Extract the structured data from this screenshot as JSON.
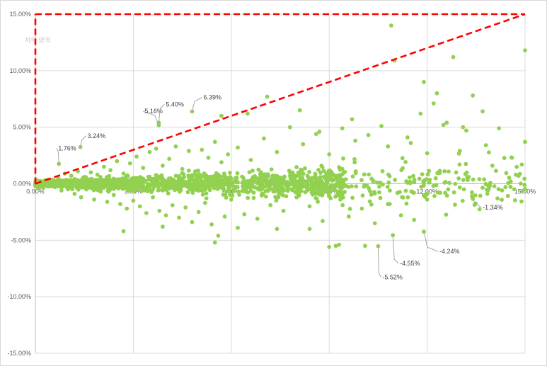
{
  "chart_data": {
    "type": "scatter",
    "title": "",
    "xlabel": "",
    "ylabel": "",
    "xlim": [
      0,
      15
    ],
    "ylim": [
      -15,
      15
    ],
    "x_ticks": [
      {
        "value": 0,
        "label": "0.00%"
      },
      {
        "value": 3,
        "label": "3.00%"
      },
      {
        "value": 6,
        "label": "6.00%"
      },
      {
        "value": 9,
        "label": "9.00%"
      },
      {
        "value": 12,
        "label": "12.00%"
      },
      {
        "value": 15,
        "label": "15.00%"
      }
    ],
    "y_ticks": [
      {
        "value": 15,
        "label": "15.00%"
      },
      {
        "value": 10,
        "label": "10.00%"
      },
      {
        "value": 5,
        "label": "5.00%"
      },
      {
        "value": 0,
        "label": "0.00%"
      },
      {
        "value": -5,
        "label": "-5.00%"
      },
      {
        "value": -10,
        "label": "-10.00%"
      },
      {
        "value": -15,
        "label": "-15.00%"
      }
    ],
    "vertical_gridlines": true,
    "horizontal_gridlines": true,
    "legend": "none",
    "marker_color": "#92d050",
    "reference_color": "#ff0000",
    "watermark_text": "차트 영역",
    "reference_lines": [
      {
        "style": "dashed",
        "points": [
          [
            0,
            0
          ],
          [
            15,
            15
          ]
        ]
      },
      {
        "style": "dashed",
        "points": [
          [
            0,
            0
          ],
          [
            0,
            15
          ]
        ]
      },
      {
        "style": "dashed",
        "points": [
          [
            0,
            15
          ],
          [
            15,
            15
          ]
        ]
      }
    ],
    "annotations": [
      {
        "label": "1.76%",
        "x": 0.72,
        "y": 1.76
      },
      {
        "label": "3.24%",
        "x": 1.38,
        "y": 3.24
      },
      {
        "label": "5.16%",
        "x": 3.78,
        "y": 5.16
      },
      {
        "label": "5.40%",
        "x": 3.78,
        "y": 5.4
      },
      {
        "label": "6.39%",
        "x": 4.8,
        "y": 6.39
      },
      {
        "label": "-1.34%",
        "x": 13.4,
        "y": -1.34
      },
      {
        "label": "-4.24%",
        "x": 11.9,
        "y": -4.24
      },
      {
        "label": "-4.55%",
        "x": 10.95,
        "y": -4.55
      },
      {
        "label": "-5.52%",
        "x": 10.5,
        "y": -5.52
      }
    ],
    "series": [
      {
        "points": [
          [
            0.1,
            0.0
          ],
          [
            0.2,
            -0.1
          ],
          [
            0.3,
            0.2
          ],
          [
            0.4,
            -0.2
          ],
          [
            0.5,
            0.3
          ],
          [
            0.6,
            -0.3
          ],
          [
            0.7,
            0.5
          ],
          [
            0.8,
            -0.6
          ],
          [
            0.9,
            0.9
          ],
          [
            1.0,
            -0.5
          ],
          [
            1.1,
            0.7
          ],
          [
            1.2,
            -0.9
          ],
          [
            1.3,
            1.1
          ],
          [
            1.4,
            -1.2
          ],
          [
            1.5,
            0.6
          ],
          [
            1.6,
            -0.4
          ],
          [
            1.7,
            1.0
          ],
          [
            1.8,
            -1.4
          ],
          [
            1.9,
            0.8
          ],
          [
            2.0,
            -0.7
          ],
          [
            2.1,
            1.5
          ],
          [
            2.2,
            -1.6
          ],
          [
            2.3,
            1.2
          ],
          [
            2.4,
            -1.0
          ],
          [
            2.5,
            2.0
          ],
          [
            2.6,
            -1.8
          ],
          [
            2.7,
            0.9
          ],
          [
            2.8,
            -2.2
          ],
          [
            2.9,
            1.8
          ],
          [
            3.0,
            -1.5
          ],
          [
            3.1,
            2.4
          ],
          [
            3.2,
            -2.0
          ],
          [
            3.3,
            1.4
          ],
          [
            3.4,
            -2.6
          ],
          [
            3.5,
            2.8
          ],
          [
            3.6,
            -1.2
          ],
          [
            3.7,
            3.1
          ],
          [
            3.8,
            -2.4
          ],
          [
            3.9,
            1.6
          ],
          [
            4.0,
            -2.8
          ],
          [
            4.1,
            2.2
          ],
          [
            4.2,
            -1.9
          ],
          [
            4.3,
            3.3
          ],
          [
            4.4,
            -3.0
          ],
          [
            4.5,
            1.3
          ],
          [
            4.6,
            -2.1
          ],
          [
            4.7,
            2.9
          ],
          [
            4.8,
            -3.4
          ],
          [
            4.9,
            1.1
          ],
          [
            5.0,
            -2.5
          ],
          [
            5.1,
            3.0
          ],
          [
            5.2,
            -1.7
          ],
          [
            5.3,
            2.3
          ],
          [
            5.4,
            -3.6
          ],
          [
            5.5,
            3.7
          ],
          [
            5.6,
            -4.6
          ],
          [
            5.7,
            1.9
          ],
          [
            5.8,
            -2.9
          ],
          [
            5.9,
            2.6
          ],
          [
            6.0,
            -1.4
          ],
          [
            6.2,
            3.2
          ],
          [
            6.4,
            -2.7
          ],
          [
            6.6,
            2.1
          ],
          [
            6.8,
            -3.1
          ],
          [
            7.0,
            4.0
          ],
          [
            7.2,
            -1.9
          ],
          [
            7.4,
            2.8
          ],
          [
            7.6,
            -2.4
          ],
          [
            7.8,
            5.0
          ],
          [
            8.0,
            -1.2
          ],
          [
            8.2,
            3.5
          ],
          [
            8.4,
            -2.0
          ],
          [
            8.6,
            4.4
          ],
          [
            8.8,
            -3.3
          ],
          [
            9.0,
            2.6
          ],
          [
            9.2,
            -5.5
          ],
          [
            9.4,
            4.9
          ],
          [
            9.6,
            -2.9
          ],
          [
            9.8,
            3.8
          ],
          [
            10.0,
            -2.2
          ],
          [
            10.2,
            4.3
          ],
          [
            10.4,
            -3.5
          ],
          [
            10.6,
            5.1
          ],
          [
            10.8,
            -1.8
          ],
          [
            11.0,
            10.9
          ],
          [
            11.2,
            -2.8
          ],
          [
            11.4,
            4.1
          ],
          [
            11.6,
            -3.2
          ],
          [
            11.8,
            6.2
          ],
          [
            12.0,
            -1.4
          ],
          [
            12.2,
            7.1
          ],
          [
            12.4,
            -0.8
          ],
          [
            12.6,
            5.4
          ],
          [
            12.8,
            11.2
          ],
          [
            13.0,
            2.9
          ],
          [
            13.2,
            4.7
          ],
          [
            13.4,
            7.8
          ],
          [
            13.6,
            0.4
          ],
          [
            13.8,
            3.4
          ],
          [
            14.0,
            1.6
          ],
          [
            14.2,
            4.9
          ],
          [
            14.4,
            -0.3
          ],
          [
            14.6,
            2.3
          ],
          [
            14.8,
            0.7
          ],
          [
            15.0,
            11.8
          ],
          [
            10.9,
            14.0
          ],
          [
            15.0,
            3.7
          ],
          [
            14.9,
            1.7
          ],
          [
            12.5,
            5.2
          ],
          [
            13.1,
            5.0
          ],
          [
            0.72,
            1.76
          ],
          [
            1.38,
            3.24
          ],
          [
            3.78,
            5.16
          ],
          [
            3.78,
            5.4
          ],
          [
            4.8,
            6.39
          ],
          [
            13.4,
            -1.34
          ],
          [
            11.9,
            -4.24
          ],
          [
            10.95,
            -4.55
          ],
          [
            10.5,
            -5.52
          ],
          [
            9.0,
            -5.6
          ],
          [
            9.3,
            -5.4
          ],
          [
            10.1,
            -5.5
          ],
          [
            8.4,
            -4.0
          ],
          [
            7.4,
            -4.0
          ],
          [
            5.5,
            -5.2
          ],
          [
            2.7,
            -4.2
          ],
          [
            6.2,
            -3.9
          ],
          [
            3.9,
            -3.8
          ],
          [
            11.9,
            9.0
          ],
          [
            12.3,
            8.0
          ],
          [
            8.1,
            6.5
          ],
          [
            6.5,
            6.2
          ],
          [
            7.1,
            7.7
          ],
          [
            5.7,
            6.0
          ],
          [
            8.7,
            4.6
          ],
          [
            9.7,
            5.7
          ],
          [
            10.8,
            3.3
          ],
          [
            11.5,
            3.6
          ],
          [
            12.0,
            2.7
          ],
          [
            13.7,
            6.4
          ]
        ]
      }
    ]
  }
}
